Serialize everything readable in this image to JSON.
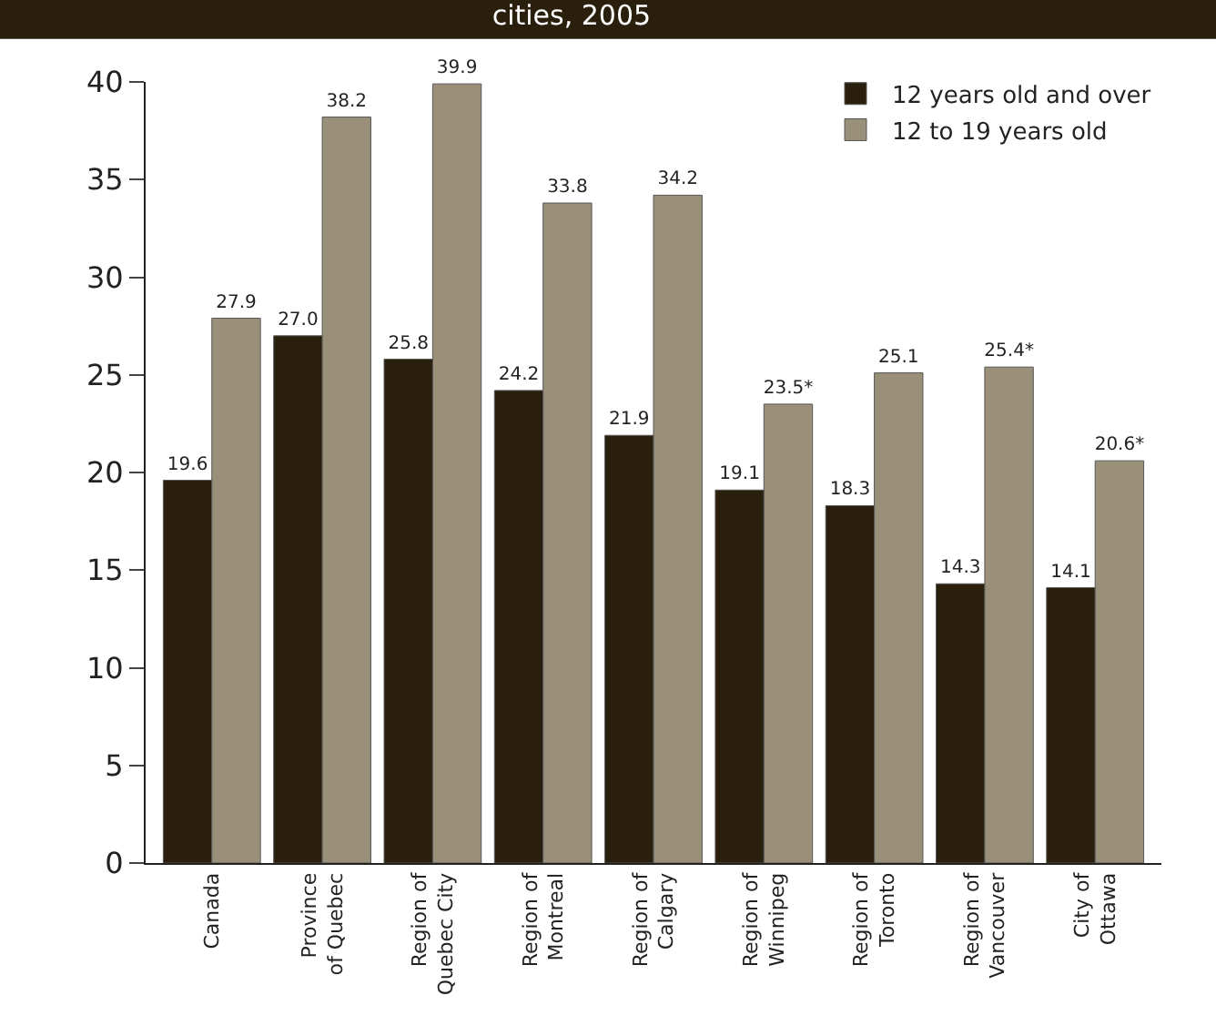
{
  "chart_data": {
    "type": "bar",
    "title": "cities, 2005",
    "categories": [
      "Canada",
      "Province\nof Quebec",
      "Region of\nQuebec City",
      "Region of\nMontreal",
      "Region of\nCalgary",
      "Region of\nWinnipeg",
      "Region of\nToronto",
      "Region of\nVancouver",
      "City of\nOttawa"
    ],
    "series": [
      {
        "name": "12 years old and over",
        "color": "#2a1e0c",
        "values": [
          19.6,
          27.0,
          25.8,
          24.2,
          21.9,
          19.1,
          18.3,
          14.3,
          14.1
        ],
        "value_labels": [
          "19.6",
          "27.0",
          "25.8",
          "24.2",
          "21.9",
          "19.1",
          "18.3",
          "14.3",
          "14.1"
        ]
      },
      {
        "name": "12 to 19 years old",
        "color": "#9a907a",
        "values": [
          27.9,
          38.2,
          39.9,
          33.8,
          34.2,
          23.5,
          25.1,
          25.4,
          20.6
        ],
        "value_labels": [
          "27.9",
          "38.2",
          "39.9",
          "33.8",
          "34.2",
          "23.5*",
          "25.1",
          "25.4*",
          "20.6*"
        ]
      }
    ],
    "ylim": [
      0,
      40
    ],
    "yticks": [
      0,
      5,
      10,
      15,
      20,
      25,
      30,
      35,
      40
    ],
    "legend": "top right"
  }
}
